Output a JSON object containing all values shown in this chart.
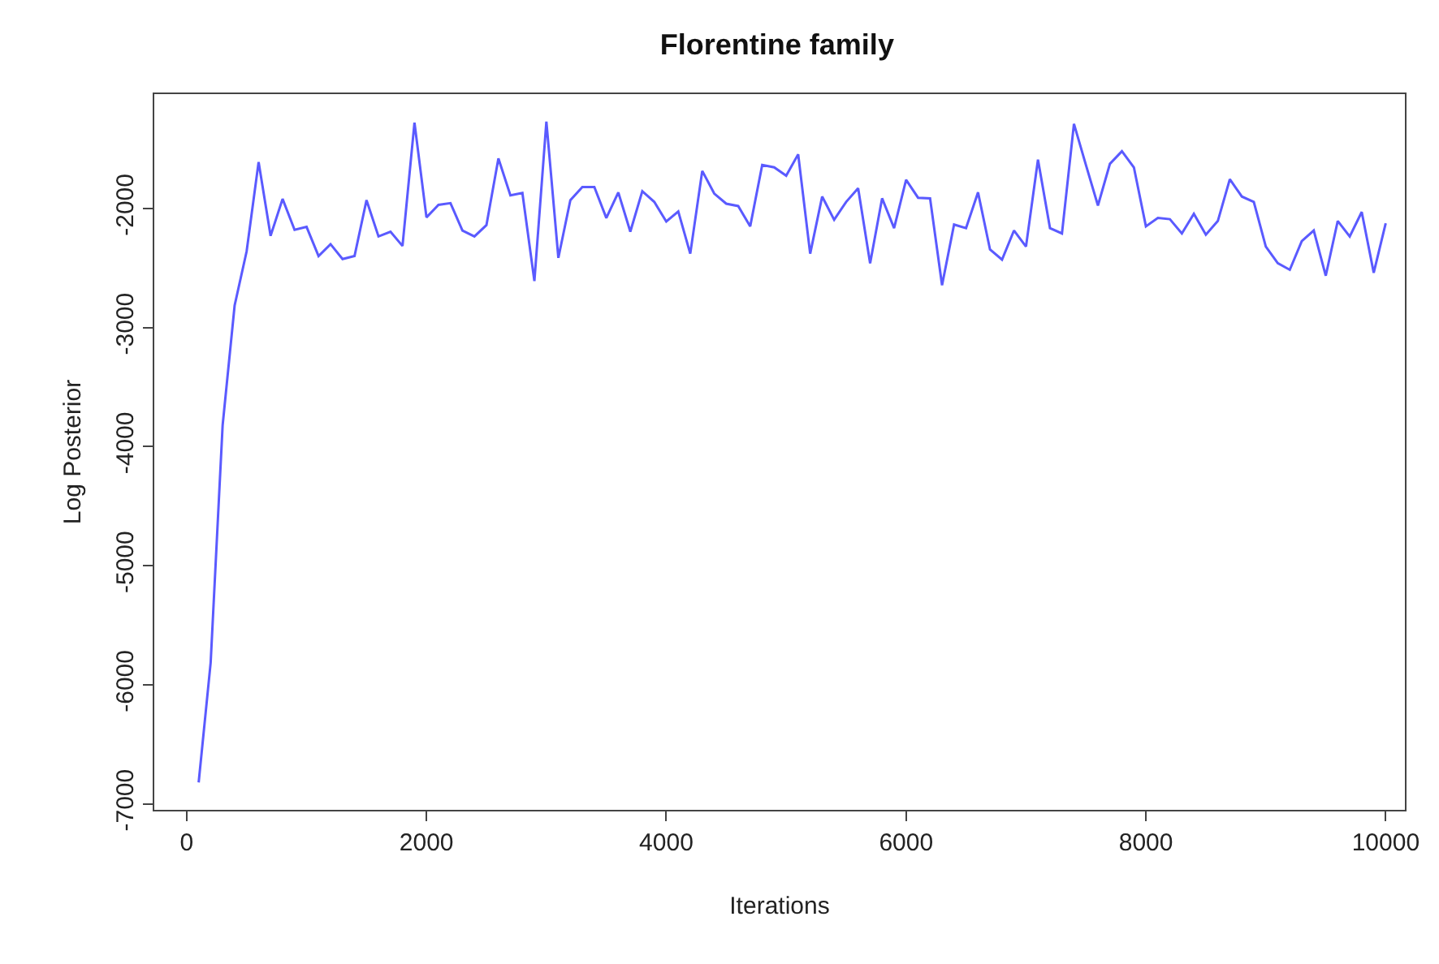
{
  "chart_data": {
    "type": "line",
    "title": "Florentine family",
    "xlabel": "Iterations",
    "ylabel": "Log Posterior",
    "x": [
      100,
      200,
      300,
      400,
      500,
      600,
      700,
      800,
      900,
      1000,
      1100,
      1200,
      1300,
      1400,
      1500,
      1600,
      1700,
      1800,
      1900,
      2000,
      2100,
      2200,
      2300,
      2400,
      2500,
      2600,
      2700,
      2800,
      2900,
      3000,
      3100,
      3200,
      3300,
      3400,
      3500,
      3600,
      3700,
      3800,
      3900,
      4000,
      4100,
      4200,
      4300,
      4400,
      4500,
      4600,
      4700,
      4800,
      4900,
      5000,
      5100,
      5200,
      5300,
      5400,
      5500,
      5600,
      5700,
      5800,
      5900,
      6000,
      6100,
      6200,
      6300,
      6400,
      6500,
      6600,
      6700,
      6800,
      6900,
      7000,
      7100,
      7200,
      7300,
      7400,
      7500,
      7600,
      7700,
      7800,
      7900,
      8000,
      8100,
      8200,
      8300,
      8400,
      8500,
      8600,
      8700,
      8800,
      8900,
      9000,
      9100,
      9200,
      9300,
      9400,
      9500,
      9600,
      9700,
      9800,
      9900,
      10000
    ],
    "series": [
      {
        "color": "#5a5aff",
        "values": [
          -6820,
          -5815,
          -3820,
          -2815,
          -2360,
          -1610,
          -2230,
          -1920,
          -2180,
          -2155,
          -2400,
          -2300,
          -2425,
          -2400,
          -1930,
          -2235,
          -2195,
          -2315,
          -1280,
          -2075,
          -1970,
          -1955,
          -2185,
          -2235,
          -2140,
          -1580,
          -1890,
          -1870,
          -2610,
          -1270,
          -2415,
          -1930,
          -1820,
          -1820,
          -2080,
          -1865,
          -2195,
          -1855,
          -1945,
          -2110,
          -2025,
          -2380,
          -1685,
          -1875,
          -1960,
          -1980,
          -2150,
          -1635,
          -1655,
          -1725,
          -1545,
          -2380,
          -1900,
          -2095,
          -1945,
          -1830,
          -2460,
          -1915,
          -2165,
          -1760,
          -1910,
          -1915,
          -2645,
          -2135,
          -2165,
          -1865,
          -2345,
          -2430,
          -2185,
          -2320,
          -1590,
          -2165,
          -2210,
          -1290,
          -1635,
          -1975,
          -1625,
          -1520,
          -1655,
          -2150,
          -2080,
          -2090,
          -2210,
          -2045,
          -2220,
          -2105,
          -1755,
          -1900,
          -1945,
          -2320,
          -2460,
          -2515,
          -2275,
          -2185,
          -2565,
          -2105,
          -2235,
          -2030,
          -2540,
          -2125
        ]
      }
    ],
    "xlim": [
      -270,
      10160
    ],
    "xticks": [
      0,
      2000,
      4000,
      6000,
      8000,
      10000
    ],
    "ylim": [
      -7050,
      -1040
    ],
    "yticks": [
      -7000,
      -6000,
      -5000,
      -4000,
      -3000,
      -2000
    ],
    "marker": "none",
    "line_style": "solid"
  }
}
